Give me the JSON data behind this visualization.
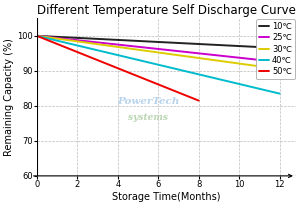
{
  "title": "Different Temperature Self Discharge Curve",
  "xlabel": "Storage Time(Months)",
  "ylabel": "Remaining Capacity (%)",
  "xlim": [
    0,
    12.8
  ],
  "ylim": [
    60,
    105
  ],
  "xticks": [
    0,
    2,
    4,
    6,
    8,
    10,
    12
  ],
  "yticks": [
    60,
    70,
    80,
    90,
    100
  ],
  "series": [
    {
      "label": "10℃",
      "color": "#222222",
      "x": [
        0,
        12
      ],
      "y": [
        100,
        96.5
      ]
    },
    {
      "label": "25℃",
      "color": "#cc00cc",
      "x": [
        0,
        12
      ],
      "y": [
        100,
        92.5
      ]
    },
    {
      "label": "30℃",
      "color": "#ddcc00",
      "x": [
        0,
        12
      ],
      "y": [
        100,
        90.5
      ]
    },
    {
      "label": "40℃",
      "color": "#00bbcc",
      "x": [
        0,
        12
      ],
      "y": [
        100,
        83.5
      ]
    },
    {
      "label": "50℃",
      "color": "#ee0000",
      "x": [
        0,
        8
      ],
      "y": [
        100,
        81.5
      ]
    }
  ],
  "grid_color": "#bbbbbb",
  "grid_linestyle": "--",
  "background_color": "#ffffff",
  "title_fontsize": 8.5,
  "axis_fontsize": 7,
  "tick_fontsize": 6,
  "legend_fontsize": 6,
  "line_width": 1.4,
  "watermark_line1": "PowerTech",
  "watermark_line2": "systems",
  "watermark_color": "#b8d4ec"
}
